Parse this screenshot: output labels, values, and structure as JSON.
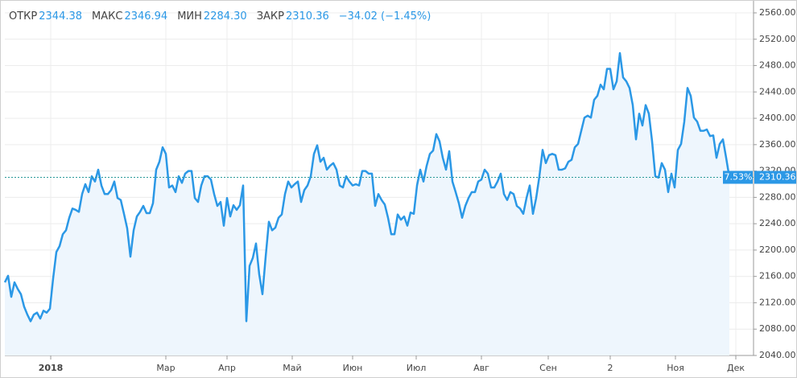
{
  "header": {
    "items": [
      {
        "label": "ОТКР",
        "value": "2344.38"
      },
      {
        "label": "МАКС",
        "value": "2346.94"
      },
      {
        "label": "МИН",
        "value": "2284.30"
      },
      {
        "label": "ЗАКР",
        "value": "2310.36"
      }
    ],
    "change": "−34.02 (−1.45%)"
  },
  "chart_data": {
    "type": "line",
    "color": "#2b98e6",
    "fill": "#eef6fd",
    "grid": true,
    "last_price_label": "2310.36",
    "change_label": "7.53%",
    "xlim": [
      0,
      232.5
    ],
    "xticks": [
      {
        "value": 14.25,
        "label": "2018"
      },
      {
        "value": 50,
        "label": "Мар"
      },
      {
        "value": 69,
        "label": "Апр"
      },
      {
        "value": 89.25,
        "label": "Май"
      },
      {
        "value": 108,
        "label": "Июн"
      },
      {
        "value": 127.75,
        "label": "Июл"
      },
      {
        "value": 148,
        "label": "Авг"
      },
      {
        "value": 168.75,
        "label": "Сен"
      },
      {
        "value": 188,
        "label": "2"
      },
      {
        "value": 208.25,
        "label": "Ноя"
      },
      {
        "value": 227,
        "label": "Дек"
      }
    ],
    "ylim": [
      2040,
      2560
    ],
    "yticks": [
      {
        "value": 2040,
        "label": "2040.00"
      },
      {
        "value": 2080,
        "label": "2080.00"
      },
      {
        "value": 2120,
        "label": "2120.00"
      },
      {
        "value": 2160,
        "label": "2160.00"
      },
      {
        "value": 2200,
        "label": "2200.00"
      },
      {
        "value": 2240,
        "label": "2240.00"
      },
      {
        "value": 2280,
        "label": "2280.00"
      },
      {
        "value": 2320,
        "label": "2320.00"
      },
      {
        "value": 2360,
        "label": "2360.00"
      },
      {
        "value": 2400,
        "label": "2400.00"
      },
      {
        "value": 2440,
        "label": "2440.00"
      },
      {
        "value": 2480,
        "label": "2480.00"
      },
      {
        "value": 2520,
        "label": "2520.00"
      },
      {
        "value": 2560,
        "label": "2560.00"
      }
    ],
    "values": [
      2151,
      2161,
      2129,
      2151,
      2141,
      2133,
      2114,
      2102,
      2092,
      2102,
      2105,
      2096,
      2108,
      2105,
      2111,
      2157,
      2197,
      2206,
      2224,
      2230,
      2249,
      2263,
      2261,
      2258,
      2285,
      2300,
      2288,
      2312,
      2304,
      2322,
      2298,
      2285,
      2285,
      2291,
      2304,
      2279,
      2276,
      2255,
      2233,
      2190,
      2230,
      2251,
      2258,
      2267,
      2256,
      2256,
      2271,
      2322,
      2334,
      2356,
      2346,
      2295,
      2298,
      2288,
      2312,
      2302,
      2316,
      2320,
      2320,
      2279,
      2273,
      2298,
      2312,
      2312,
      2307,
      2285,
      2267,
      2273,
      2237,
      2279,
      2251,
      2268,
      2261,
      2268,
      2298,
      2092,
      2176,
      2188,
      2210,
      2163,
      2133,
      2190,
      2243,
      2230,
      2234,
      2249,
      2254,
      2285,
      2304,
      2295,
      2300,
      2304,
      2273,
      2291,
      2298,
      2312,
      2346,
      2359,
      2334,
      2340,
      2322,
      2328,
      2332,
      2322,
      2298,
      2295,
      2312,
      2304,
      2298,
      2300,
      2298,
      2320,
      2320,
      2316,
      2316,
      2267,
      2285,
      2276,
      2269,
      2249,
      2224,
      2224,
      2254,
      2246,
      2251,
      2237,
      2257,
      2255,
      2298,
      2322,
      2304,
      2328,
      2346,
      2351,
      2376,
      2365,
      2340,
      2322,
      2350,
      2304,
      2288,
      2271,
      2249,
      2267,
      2279,
      2288,
      2288,
      2304,
      2307,
      2322,
      2316,
      2295,
      2295,
      2304,
      2316,
      2285,
      2276,
      2288,
      2285,
      2267,
      2263,
      2255,
      2279,
      2298,
      2255,
      2279,
      2312,
      2352,
      2332,
      2344,
      2346,
      2344,
      2322,
      2322,
      2324,
      2334,
      2337,
      2356,
      2361,
      2381,
      2401,
      2404,
      2401,
      2428,
      2434,
      2451,
      2444,
      2475,
      2475,
      2444,
      2456,
      2499,
      2462,
      2456,
      2446,
      2420,
      2368,
      2407,
      2389,
      2420,
      2407,
      2365,
      2312,
      2310,
      2332,
      2322,
      2288,
      2316,
      2295,
      2352,
      2361,
      2395,
      2446,
      2434,
      2401,
      2395,
      2381,
      2381,
      2383,
      2373,
      2374,
      2340,
      2361,
      2368,
      2340,
      2310.36
    ]
  }
}
